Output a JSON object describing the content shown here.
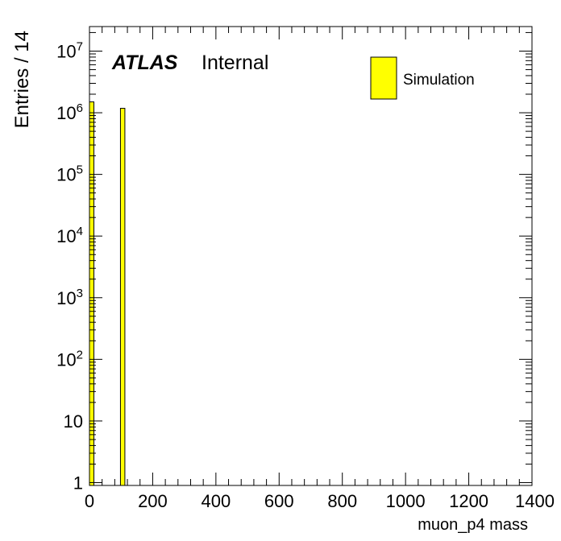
{
  "chart_data": {
    "type": "bar",
    "xlabel": "muon_p4 mass",
    "ylabel": "Entries / 14",
    "xlim": [
      0,
      1400
    ],
    "ylim": [
      0.9,
      25000000
    ],
    "yscale": "log",
    "bin_width": 14,
    "x_ticks": [
      "0",
      "200",
      "400",
      "600",
      "800",
      "1000",
      "1200",
      "1400"
    ],
    "y_ticks": [
      {
        "value": 1,
        "mantissa": "1",
        "exp": ""
      },
      {
        "value": 10,
        "mantissa": "10",
        "exp": ""
      },
      {
        "value": 100,
        "mantissa": "10",
        "exp": "2"
      },
      {
        "value": 1000,
        "mantissa": "10",
        "exp": "3"
      },
      {
        "value": 10000,
        "mantissa": "10",
        "exp": "4"
      },
      {
        "value": 100000,
        "mantissa": "10",
        "exp": "5"
      },
      {
        "value": 1000000,
        "mantissa": "10",
        "exp": "6"
      },
      {
        "value": 10000000,
        "mantissa": "10",
        "exp": "7"
      }
    ],
    "bins": [
      {
        "x0": 0,
        "x1": 14,
        "value": 1500000
      },
      {
        "x0": 98,
        "x1": 112,
        "value": 1180000
      }
    ],
    "series": [
      {
        "name": "Simulation",
        "color": "#ffff00"
      }
    ],
    "annotation": {
      "bold": "ATLAS",
      "normal": "Internal"
    },
    "legend_position": "top-right",
    "grid": false
  }
}
